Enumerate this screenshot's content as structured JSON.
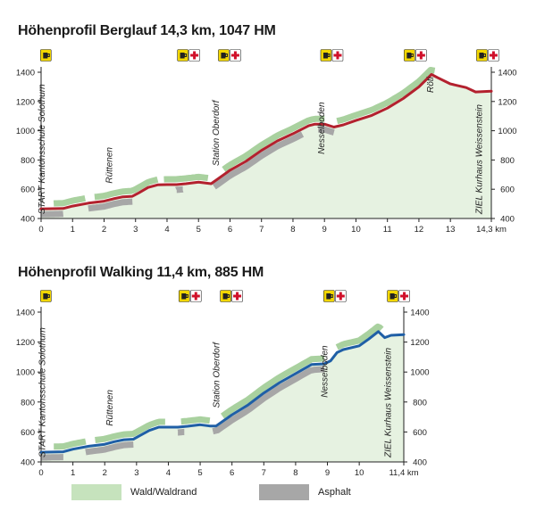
{
  "colors": {
    "forest": "#c6e3bd",
    "forest_stroke": "#a9d19f",
    "asphalt": "#a7a7a7",
    "route_berglauf": "#b3212e",
    "route_walking": "#1f5fa6",
    "axis": "#222222",
    "sign_yellow": "#f2d600",
    "sign_red": "#d0102a"
  },
  "chart_data": [
    {
      "type": "area",
      "title": "Höhenprofil Berglauf 14,3 km, 1047 HM",
      "xlim": [
        0,
        14.3
      ],
      "ylim": [
        400,
        1400
      ],
      "x_ticks": [
        "0",
        "1",
        "2",
        "3",
        "4",
        "5",
        "6",
        "7",
        "8",
        "9",
        "10",
        "11",
        "12",
        "13",
        "14,3 km"
      ],
      "y_ticks": [
        "400",
        "600",
        "800",
        "1000",
        "1200",
        "1400"
      ],
      "series": [
        {
          "x": [
            0,
            0.7,
            1.0,
            1.5,
            2.0,
            2.3,
            2.6,
            2.9,
            3.1,
            3.4,
            3.7,
            4.0,
            4.3,
            4.6,
            5.0,
            5.4,
            5.6,
            6.0,
            6.5,
            7.0,
            7.5,
            8.0,
            8.5,
            8.7,
            9.0,
            9.3,
            9.6,
            10.0,
            10.5,
            11.0,
            11.5,
            12.0,
            12.4,
            12.6,
            13.0,
            13.5,
            13.8,
            14.3
          ],
          "y": [
            465,
            468,
            485,
            505,
            518,
            535,
            548,
            552,
            575,
            612,
            630,
            632,
            632,
            638,
            648,
            638,
            668,
            730,
            790,
            865,
            930,
            980,
            1035,
            1045,
            1045,
            1025,
            1040,
            1070,
            1105,
            1155,
            1220,
            1300,
            1385,
            1362,
            1320,
            1295,
            1265,
            1270
          ]
        }
      ],
      "forest_segments": [
        [
          0.4,
          1.4
        ],
        [
          1.7,
          3.7
        ],
        [
          3.9,
          5.3
        ],
        [
          5.8,
          9.0
        ],
        [
          9.4,
          12.5
        ]
      ],
      "asphalt_segments": [
        [
          0,
          0.7
        ],
        [
          1.5,
          2.9
        ],
        [
          4.3,
          4.5
        ],
        [
          5.5,
          8.3
        ],
        [
          8.8,
          9.3
        ]
      ],
      "labels": [
        {
          "text": "START Kantonsschule Solothurn",
          "x": 0.12,
          "y": 430
        },
        {
          "text": "Rüttenen",
          "x": 2.25,
          "y": 640
        },
        {
          "text": "Station Oberdorf",
          "x": 5.65,
          "y": 760
        },
        {
          "text": "Nesselboden",
          "x": 9.0,
          "y": 840
        },
        {
          "text": "Röti",
          "x": 12.45,
          "y": 1260
        },
        {
          "text": "ZIEL Kurhaus Weissenstein",
          "x": 14.0,
          "y": 430
        }
      ],
      "stations": [
        {
          "x": 0.15,
          "medical": false
        },
        {
          "x": 4.5,
          "medical": true
        },
        {
          "x": 5.8,
          "medical": true
        },
        {
          "x": 9.05,
          "medical": true
        },
        {
          "x": 11.7,
          "medical": true
        },
        {
          "x": 14.0,
          "medical": true
        }
      ]
    },
    {
      "type": "area",
      "title": "Höhenprofil Walking 11,4 km, 885 HM",
      "xlim": [
        0,
        11.4
      ],
      "ylim": [
        400,
        1400
      ],
      "x_ticks": [
        "0",
        "1",
        "2",
        "3",
        "4",
        "5",
        "6",
        "7",
        "8",
        "9",
        "10",
        "11,4 km"
      ],
      "y_ticks": [
        "400",
        "600",
        "800",
        "1000",
        "1200",
        "1400"
      ],
      "series": [
        {
          "x": [
            0,
            0.7,
            1.0,
            1.5,
            2.0,
            2.3,
            2.6,
            2.9,
            3.1,
            3.4,
            3.7,
            4.0,
            4.3,
            4.6,
            5.0,
            5.3,
            5.5,
            6.0,
            6.5,
            7.0,
            7.5,
            8.0,
            8.5,
            8.9,
            9.1,
            9.3,
            9.5,
            10.0,
            10.3,
            10.6,
            10.8,
            11.0,
            11.4
          ],
          "y": [
            465,
            468,
            485,
            505,
            518,
            535,
            548,
            552,
            575,
            610,
            632,
            632,
            632,
            638,
            648,
            640,
            640,
            715,
            780,
            860,
            930,
            990,
            1050,
            1055,
            1075,
            1130,
            1150,
            1175,
            1220,
            1270,
            1230,
            1245,
            1250
          ]
        }
      ],
      "forest_segments": [
        [
          0.4,
          1.4
        ],
        [
          1.7,
          3.9
        ],
        [
          4.4,
          5.3
        ],
        [
          5.7,
          8.9
        ],
        [
          9.3,
          10.7
        ]
      ],
      "asphalt_segments": [
        [
          0,
          0.7
        ],
        [
          1.4,
          2.9
        ],
        [
          4.3,
          4.5
        ],
        [
          5.4,
          8.9
        ]
      ],
      "labels": [
        {
          "text": "START Kantonsschule Solothurn",
          "x": 0.12,
          "y": 430
        },
        {
          "text": "Rüttenen",
          "x": 2.25,
          "y": 640
        },
        {
          "text": "Station Oberdorf",
          "x": 5.6,
          "y": 760
        },
        {
          "text": "Nesselboden",
          "x": 9.0,
          "y": 830
        },
        {
          "text": "ZIEL Kurhaus Weissenstein",
          "x": 11.0,
          "y": 430
        }
      ],
      "stations": [
        {
          "x": 0.15,
          "medical": false
        },
        {
          "x": 4.5,
          "medical": true
        },
        {
          "x": 5.8,
          "medical": true
        },
        {
          "x": 9.05,
          "medical": true
        },
        {
          "x": 11.05,
          "medical": true
        }
      ]
    }
  ],
  "legend": {
    "forest": "Wald/Waldrand",
    "asphalt": "Asphalt"
  }
}
